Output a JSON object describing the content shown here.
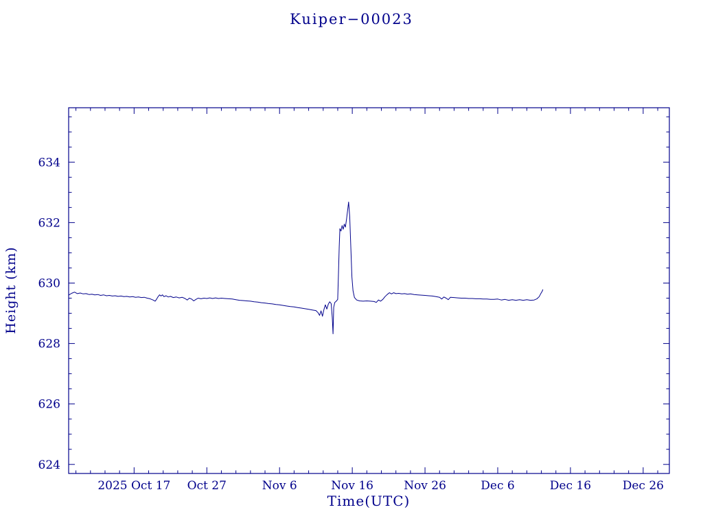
{
  "chart_data": {
    "type": "line",
    "title": "Kuiper−00023",
    "xlabel": "Time(UTC)",
    "ylabel": "Height (km)",
    "color": "#00008b",
    "background": "#ffffff",
    "grid": false,
    "legend": "none",
    "xlim": [
      0,
      82.6
    ],
    "ylim": [
      623.7,
      635.8
    ],
    "y_ticks": [
      624,
      626,
      628,
      630,
      632,
      634
    ],
    "y_minor_step": 0.5,
    "x_minor_step": 2,
    "x_ticks": [
      {
        "day": 9,
        "label": "2025 Oct 17"
      },
      {
        "day": 19,
        "label": "Oct 27"
      },
      {
        "day": 29,
        "label": "Nov 6"
      },
      {
        "day": 39,
        "label": "Nov 16"
      },
      {
        "day": 49,
        "label": "Nov 26"
      },
      {
        "day": 59,
        "label": "Dec 6"
      },
      {
        "day": 69,
        "label": "Dec 16"
      },
      {
        "day": 79,
        "label": "Dec 26"
      }
    ],
    "series": [
      {
        "name": "height_km",
        "points": [
          [
            0,
            629.6
          ],
          [
            0.4,
            629.66
          ],
          [
            0.8,
            629.7
          ],
          [
            1.2,
            629.65
          ],
          [
            1.6,
            629.67
          ],
          [
            2,
            629.64
          ],
          [
            2.4,
            629.65
          ],
          [
            2.8,
            629.62
          ],
          [
            3.2,
            629.63
          ],
          [
            3.6,
            629.61
          ],
          [
            4,
            629.62
          ],
          [
            4.4,
            629.59
          ],
          [
            4.8,
            629.61
          ],
          [
            5.2,
            629.58
          ],
          [
            5.6,
            629.59
          ],
          [
            6,
            629.57
          ],
          [
            6.4,
            629.58
          ],
          [
            6.8,
            629.56
          ],
          [
            7.2,
            629.57
          ],
          [
            7.6,
            629.55
          ],
          [
            8,
            629.56
          ],
          [
            8.4,
            629.54
          ],
          [
            8.8,
            629.55
          ],
          [
            9.2,
            629.53
          ],
          [
            9.6,
            629.54
          ],
          [
            10,
            629.52
          ],
          [
            10.4,
            629.53
          ],
          [
            10.8,
            629.5
          ],
          [
            11.2,
            629.48
          ],
          [
            11.6,
            629.44
          ],
          [
            11.9,
            629.4
          ],
          [
            12.1,
            629.47
          ],
          [
            12.3,
            629.55
          ],
          [
            12.5,
            629.61
          ],
          [
            12.7,
            629.57
          ],
          [
            12.9,
            629.61
          ],
          [
            13.1,
            629.55
          ],
          [
            13.4,
            629.58
          ],
          [
            13.7,
            629.54
          ],
          [
            14,
            629.56
          ],
          [
            14.4,
            629.52
          ],
          [
            14.8,
            629.54
          ],
          [
            15.2,
            629.51
          ],
          [
            15.6,
            629.53
          ],
          [
            16,
            629.49
          ],
          [
            16.3,
            629.44
          ],
          [
            16.6,
            629.5
          ],
          [
            16.9,
            629.47
          ],
          [
            17.2,
            629.41
          ],
          [
            17.5,
            629.46
          ],
          [
            17.8,
            629.5
          ],
          [
            18.2,
            629.48
          ],
          [
            18.6,
            629.5
          ],
          [
            19,
            629.49
          ],
          [
            19.4,
            629.51
          ],
          [
            19.8,
            629.49
          ],
          [
            20.2,
            629.51
          ],
          [
            20.6,
            629.49
          ],
          [
            21,
            629.5
          ],
          [
            21.5,
            629.49
          ],
          [
            22,
            629.48
          ],
          [
            22.5,
            629.47
          ],
          [
            23,
            629.45
          ],
          [
            23.5,
            629.43
          ],
          [
            24,
            629.42
          ],
          [
            24.5,
            629.41
          ],
          [
            25,
            629.4
          ],
          [
            25.5,
            629.38
          ],
          [
            26,
            629.37
          ],
          [
            26.5,
            629.35
          ],
          [
            27,
            629.34
          ],
          [
            27.5,
            629.32
          ],
          [
            28,
            629.31
          ],
          [
            28.5,
            629.29
          ],
          [
            29,
            629.28
          ],
          [
            29.5,
            629.26
          ],
          [
            30,
            629.24
          ],
          [
            30.5,
            629.22
          ],
          [
            31,
            629.21
          ],
          [
            31.5,
            629.19
          ],
          [
            32,
            629.17
          ],
          [
            32.5,
            629.15
          ],
          [
            33,
            629.13
          ],
          [
            33.5,
            629.11
          ],
          [
            34,
            629.09
          ],
          [
            34.3,
            629.02
          ],
          [
            34.5,
            628.93
          ],
          [
            34.7,
            629.08
          ],
          [
            34.9,
            628.9
          ],
          [
            35.1,
            629.12
          ],
          [
            35.3,
            629.28
          ],
          [
            35.5,
            629.14
          ],
          [
            35.7,
            629.3
          ],
          [
            35.9,
            629.38
          ],
          [
            36.1,
            629.32
          ],
          [
            36.25,
            628.85
          ],
          [
            36.35,
            628.32
          ],
          [
            36.45,
            629.2
          ],
          [
            36.6,
            629.36
          ],
          [
            36.8,
            629.4
          ],
          [
            37,
            629.46
          ],
          [
            37.1,
            630.3
          ],
          [
            37.2,
            631.2
          ],
          [
            37.3,
            631.8
          ],
          [
            37.45,
            631.72
          ],
          [
            37.6,
            631.9
          ],
          [
            37.75,
            631.78
          ],
          [
            37.9,
            631.95
          ],
          [
            38.05,
            631.85
          ],
          [
            38.2,
            632.1
          ],
          [
            38.35,
            632.4
          ],
          [
            38.5,
            632.68
          ],
          [
            38.65,
            632.2
          ],
          [
            38.8,
            631.2
          ],
          [
            38.95,
            630.2
          ],
          [
            39.1,
            629.75
          ],
          [
            39.3,
            629.52
          ],
          [
            39.6,
            629.44
          ],
          [
            40,
            629.41
          ],
          [
            40.5,
            629.4
          ],
          [
            41,
            629.41
          ],
          [
            41.5,
            629.4
          ],
          [
            42,
            629.39
          ],
          [
            42.3,
            629.36
          ],
          [
            42.6,
            629.44
          ],
          [
            42.9,
            629.4
          ],
          [
            43.2,
            629.46
          ],
          [
            43.5,
            629.55
          ],
          [
            43.8,
            629.62
          ],
          [
            44.1,
            629.68
          ],
          [
            44.4,
            629.64
          ],
          [
            44.7,
            629.68
          ],
          [
            45,
            629.65
          ],
          [
            45.4,
            629.66
          ],
          [
            45.8,
            629.64
          ],
          [
            46.2,
            629.65
          ],
          [
            46.6,
            629.63
          ],
          [
            47,
            629.64
          ],
          [
            47.5,
            629.62
          ],
          [
            48,
            629.61
          ],
          [
            48.5,
            629.6
          ],
          [
            49,
            629.59
          ],
          [
            49.5,
            629.58
          ],
          [
            50,
            629.57
          ],
          [
            50.5,
            629.55
          ],
          [
            51,
            629.53
          ],
          [
            51.3,
            629.47
          ],
          [
            51.6,
            629.54
          ],
          [
            51.9,
            629.5
          ],
          [
            52.2,
            629.45
          ],
          [
            52.5,
            629.53
          ],
          [
            53,
            629.52
          ],
          [
            53.5,
            629.51
          ],
          [
            54,
            629.5
          ],
          [
            54.5,
            629.5
          ],
          [
            55,
            629.49
          ],
          [
            55.5,
            629.49
          ],
          [
            56,
            629.48
          ],
          [
            56.5,
            629.48
          ],
          [
            57,
            629.47
          ],
          [
            57.5,
            629.47
          ],
          [
            58,
            629.46
          ],
          [
            58.5,
            629.46
          ],
          [
            59,
            629.47
          ],
          [
            59.5,
            629.44
          ],
          [
            60,
            629.46
          ],
          [
            60.5,
            629.43
          ],
          [
            61,
            629.45
          ],
          [
            61.5,
            629.43
          ],
          [
            62,
            629.45
          ],
          [
            62.5,
            629.43
          ],
          [
            63,
            629.45
          ],
          [
            63.5,
            629.43
          ],
          [
            64,
            629.44
          ],
          [
            64.4,
            629.48
          ],
          [
            64.7,
            629.55
          ],
          [
            64.9,
            629.64
          ],
          [
            65.1,
            629.72
          ],
          [
            65.2,
            629.78
          ]
        ]
      }
    ]
  }
}
